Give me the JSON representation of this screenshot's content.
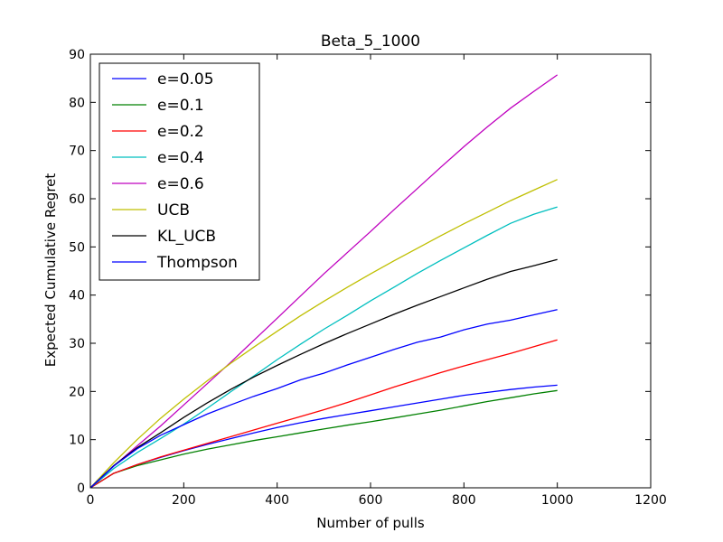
{
  "chart_data": {
    "type": "line",
    "title": "Beta_5_1000",
    "xlabel": "Number of pulls",
    "ylabel": "Expected Cumulative Regret",
    "xlim": [
      0,
      1200
    ],
    "ylim": [
      0,
      90
    ],
    "xticks": [
      0,
      200,
      400,
      600,
      800,
      1000,
      1200
    ],
    "yticks": [
      0,
      10,
      20,
      30,
      40,
      50,
      60,
      70,
      80,
      90
    ],
    "grid": false,
    "legend_position": "upper-left",
    "x": [
      0,
      50,
      100,
      150,
      200,
      250,
      300,
      350,
      400,
      450,
      500,
      550,
      600,
      650,
      700,
      750,
      800,
      850,
      900,
      950,
      1000
    ],
    "series": [
      {
        "name": "e=0.05",
        "color": "#0000ff",
        "values": [
          0,
          3.0,
          4.8,
          6.3,
          7.7,
          9.0,
          10.2,
          11.4,
          12.5,
          13.5,
          14.4,
          15.2,
          16.0,
          16.8,
          17.6,
          18.4,
          19.2,
          19.8,
          20.4,
          20.9,
          21.3
        ]
      },
      {
        "name": "e=0.1",
        "color": "#008000",
        "values": [
          0,
          3.0,
          4.6,
          5.8,
          7.0,
          8.0,
          8.9,
          9.8,
          10.6,
          11.4,
          12.2,
          13.0,
          13.7,
          14.5,
          15.3,
          16.1,
          17.0,
          17.9,
          18.7,
          19.5,
          20.2
        ]
      },
      {
        "name": "e=0.2",
        "color": "#ff0000",
        "values": [
          0,
          3.0,
          4.8,
          6.4,
          7.8,
          9.2,
          10.6,
          12.0,
          13.4,
          14.8,
          16.2,
          17.7,
          19.3,
          20.9,
          22.4,
          23.9,
          25.3,
          26.6,
          27.9,
          29.3,
          30.7
        ]
      },
      {
        "name": "e=0.4",
        "color": "#00bfbf",
        "values": [
          0,
          4.0,
          7.3,
          10.2,
          13.2,
          16.5,
          19.9,
          23.2,
          26.6,
          29.8,
          32.9,
          35.8,
          38.8,
          41.6,
          44.5,
          47.2,
          49.8,
          52.4,
          54.9,
          56.8,
          58.3
        ]
      },
      {
        "name": "e=0.6",
        "color": "#bf00bf",
        "values": [
          0,
          4.5,
          8.7,
          12.8,
          17.2,
          21.6,
          26.0,
          30.6,
          35.2,
          39.8,
          44.4,
          48.8,
          53.2,
          57.7,
          62.1,
          66.5,
          70.8,
          74.9,
          78.8,
          82.3,
          85.7
        ]
      },
      {
        "name": "UCB",
        "color": "#bfbf00",
        "values": [
          0,
          5.2,
          10.0,
          14.4,
          18.4,
          22.2,
          25.8,
          29.2,
          32.5,
          35.7,
          38.7,
          41.6,
          44.4,
          47.1,
          49.7,
          52.3,
          54.8,
          57.2,
          59.6,
          61.8,
          64.0
        ]
      },
      {
        "name": "KL_UCB",
        "color": "#000000",
        "values": [
          0,
          4.6,
          8.3,
          11.4,
          14.6,
          17.6,
          20.4,
          23.0,
          25.4,
          27.7,
          29.9,
          32.0,
          34.0,
          36.0,
          37.9,
          39.7,
          41.5,
          43.3,
          44.9,
          46.1,
          47.4
        ]
      },
      {
        "name": "Thompson",
        "color": "#0000ff",
        "values": [
          0,
          4.5,
          8.1,
          10.9,
          13.1,
          15.3,
          17.2,
          19.0,
          20.6,
          22.4,
          23.8,
          25.5,
          27.1,
          28.7,
          30.2,
          31.3,
          32.8,
          34.0,
          34.8,
          35.9,
          37.0
        ]
      }
    ]
  }
}
